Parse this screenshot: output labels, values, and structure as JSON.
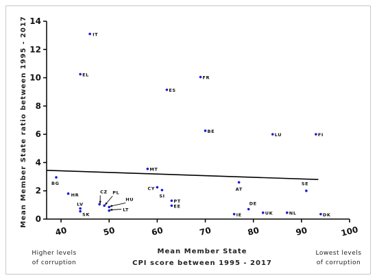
{
  "chart_data": {
    "type": "scatter",
    "xlabel_line1": "Mean Member State",
    "xlabel_line2": "CPI score between 1995 - 2017",
    "ylabel": "Mean Member  State ratio between 1995 - 2017",
    "xlim": [
      37,
      100
    ],
    "ylim": [
      0,
      14
    ],
    "xticks": [
      40,
      50,
      60,
      70,
      80,
      90,
      100
    ],
    "yticks": [
      0,
      2,
      4,
      6,
      8,
      10,
      12,
      14
    ],
    "point_color": "#1a1ad6",
    "points": [
      {
        "label": "IT",
        "x": 46,
        "y": 13.1
      },
      {
        "label": "EL",
        "x": 44,
        "y": 10.25
      },
      {
        "label": "FR",
        "x": 69,
        "y": 10.05
      },
      {
        "label": "ES",
        "x": 62,
        "y": 9.15
      },
      {
        "label": "BE",
        "x": 70,
        "y": 6.25
      },
      {
        "label": "LU",
        "x": 84,
        "y": 6.0
      },
      {
        "label": "FI",
        "x": 93,
        "y": 6.0
      },
      {
        "label": "MT",
        "x": 58,
        "y": 3.55
      },
      {
        "label": "AT",
        "x": 77,
        "y": 2.6
      },
      {
        "label": "BG",
        "x": 39,
        "y": 2.95
      },
      {
        "label": "CY",
        "x": 60,
        "y": 2.25
      },
      {
        "label": "SI",
        "x": 61,
        "y": 2.05
      },
      {
        "label": "SE",
        "x": 91,
        "y": 2.0
      },
      {
        "label": "HR",
        "x": 41.5,
        "y": 1.8
      },
      {
        "label": "CZ",
        "x": 48,
        "y": 1.05
      },
      {
        "label": "PL",
        "x": 49,
        "y": 0.95
      },
      {
        "label": "HU",
        "x": 50,
        "y": 0.85
      },
      {
        "label": "LT",
        "x": 50,
        "y": 0.6
      },
      {
        "label": "LV",
        "x": 44,
        "y": 0.75
      },
      {
        "label": "SK",
        "x": 44,
        "y": 0.55
      },
      {
        "label": "PT",
        "x": 63,
        "y": 1.3
      },
      {
        "label": "EE",
        "x": 63,
        "y": 0.95
      },
      {
        "label": "DE",
        "x": 79,
        "y": 0.7
      },
      {
        "label": "IE",
        "x": 76,
        "y": 0.35
      },
      {
        "label": "UK",
        "x": 82,
        "y": 0.45
      },
      {
        "label": "NL",
        "x": 87,
        "y": 0.45
      },
      {
        "label": "DK",
        "x": 94,
        "y": 0.35
      }
    ],
    "trendline": {
      "x": [
        37,
        93.5
      ],
      "y": [
        3.45,
        2.8
      ]
    },
    "annotation_left": [
      "Higher levels",
      "of corruption"
    ],
    "annotation_right": [
      "Lowest levels",
      "of corruption"
    ],
    "grid": false,
    "legend": "none"
  }
}
